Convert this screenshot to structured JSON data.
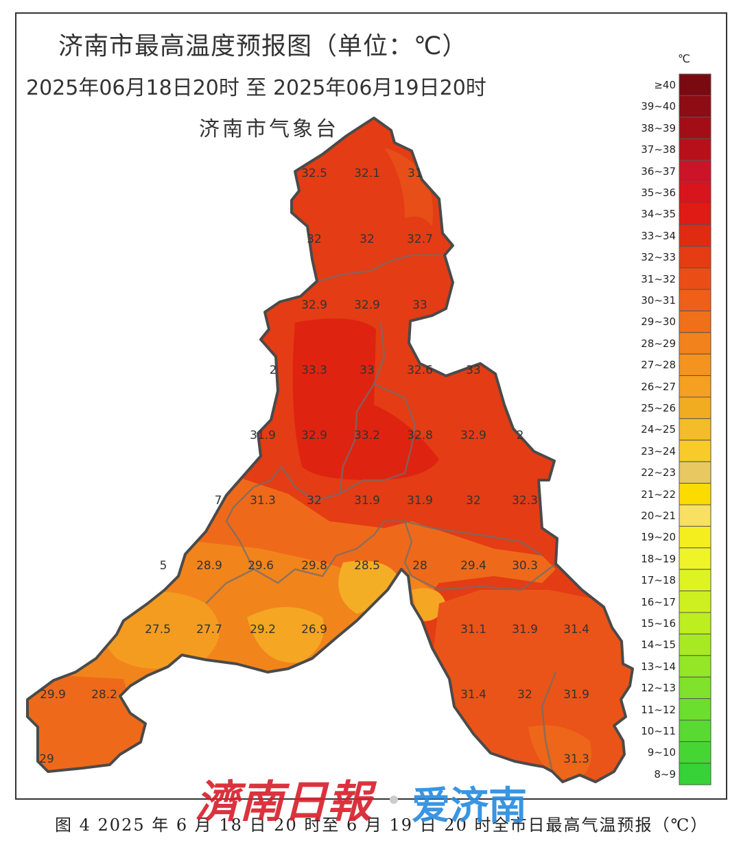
{
  "title": "济南市最高温度预报图（单位：℃）",
  "period": "2025年06月18日20时  至  2025年06月19日20时",
  "agency": "济南市气象台",
  "legend": {
    "unit": "℃",
    "items": [
      {
        "label": "≥40",
        "color": "#7a0a12"
      },
      {
        "label": "39~40",
        "color": "#8e0c14"
      },
      {
        "label": "38~39",
        "color": "#a30e16"
      },
      {
        "label": "37~38",
        "color": "#b8101a"
      },
      {
        "label": "36~37",
        "color": "#cc1428"
      },
      {
        "label": "35~36",
        "color": "#d8141c"
      },
      {
        "label": "34~35",
        "color": "#e01a14"
      },
      {
        "label": "33~34",
        "color": "#e02a12"
      },
      {
        "label": "32~33",
        "color": "#e63c14"
      },
      {
        "label": "31~32",
        "color": "#ea4e16"
      },
      {
        "label": "30~31",
        "color": "#ee6018"
      },
      {
        "label": "29~30",
        "color": "#f0701a"
      },
      {
        "label": "28~29",
        "color": "#f2821c"
      },
      {
        "label": "27~28",
        "color": "#f4941e"
      },
      {
        "label": "26~27",
        "color": "#f5a020"
      },
      {
        "label": "25~26",
        "color": "#f2ac22"
      },
      {
        "label": "24~25",
        "color": "#f4bc28"
      },
      {
        "label": "23~24",
        "color": "#f7cc2a"
      },
      {
        "label": "22~23",
        "color": "#e8c860"
      },
      {
        "label": "21~22",
        "color": "#fcdc00"
      },
      {
        "label": "20~21",
        "color": "#f8e060"
      },
      {
        "label": "19~20",
        "color": "#f4ee1e"
      },
      {
        "label": "18~19",
        "color": "#eef428"
      },
      {
        "label": "17~18",
        "color": "#def422"
      },
      {
        "label": "16~17",
        "color": "#cef020"
      },
      {
        "label": "15~16",
        "color": "#bcee20"
      },
      {
        "label": "14~15",
        "color": "#a8ea22"
      },
      {
        "label": "13~14",
        "color": "#94e626"
      },
      {
        "label": "12~13",
        "color": "#80e22a"
      },
      {
        "label": "11~12",
        "color": "#6cde2e"
      },
      {
        "label": "10~11",
        "color": "#58da32"
      },
      {
        "label": "9~10",
        "color": "#46d634"
      },
      {
        "label": "8~9",
        "color": "#36d238"
      }
    ]
  },
  "temperature_labels": [
    "32.5",
    "32.1",
    "31",
    "32",
    "32",
    "32.7",
    "32.9",
    "32.9",
    "33",
    "2",
    "33.3",
    "33",
    "32.6",
    "33",
    "31.9",
    "32.9",
    "33.2",
    "32.8",
    "32.9",
    "2",
    "7",
    "31.3",
    "32",
    "31.9",
    "31.9",
    "32",
    "32.3",
    "5",
    "28.9",
    "29.6",
    "29.8",
    "28.5",
    "28",
    "29.4",
    "30.3",
    "27.5",
    "27.7",
    "29.2",
    "26.9",
    "31.1",
    "31.9",
    "31.4",
    "29.9",
    "28.2",
    "31.4",
    "32",
    "31.9",
    "29",
    "31.3"
  ],
  "caption": "图 4 2025 年 6 月 18 日 20 时至 6 月 19 日 20 时全市日最高气温预报（℃）",
  "watermark": {
    "newspaper": "濟南日報",
    "app": "爱济南"
  }
}
